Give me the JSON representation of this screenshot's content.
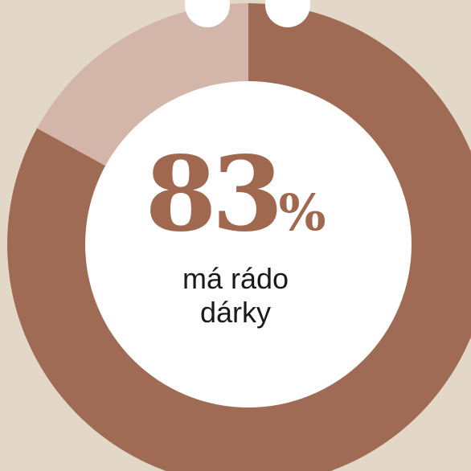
{
  "chart_data": {
    "type": "pie",
    "donut": true,
    "slices": [
      {
        "value": 83,
        "color": "#a06b55"
      },
      {
        "value": 17,
        "color": "#d3b6a9"
      }
    ],
    "background": "#e3d8c8",
    "hole_color": "#ffffff",
    "value_label": "83",
    "percent_sign": "%",
    "caption_line1": "má rádo",
    "caption_line2": "dárky"
  }
}
